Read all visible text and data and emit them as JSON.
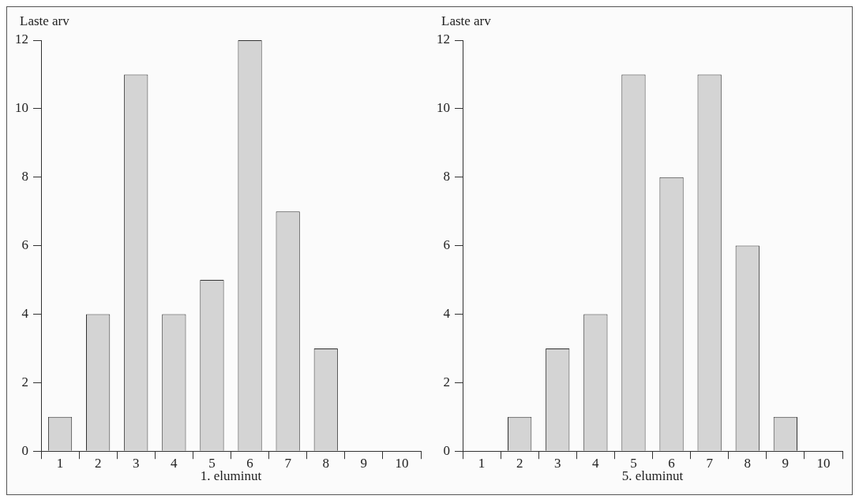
{
  "chart_data": [
    {
      "type": "bar",
      "ylabel": "Laste arv",
      "xlabel": "1. eluminut",
      "categories": [
        "1",
        "2",
        "3",
        "4",
        "5",
        "6",
        "7",
        "8",
        "9",
        "10"
      ],
      "values": [
        1,
        4,
        11,
        4,
        5,
        12,
        7,
        3,
        0,
        0
      ],
      "color": "#d4d4d4",
      "ylim": [
        0,
        12
      ],
      "yticks": [
        0,
        2,
        4,
        6,
        8,
        10,
        12
      ],
      "grid": false
    },
    {
      "type": "bar",
      "ylabel": "Laste arv",
      "xlabel": "5. eluminut",
      "categories": [
        "1",
        "2",
        "3",
        "4",
        "5",
        "6",
        "7",
        "8",
        "9",
        "10"
      ],
      "values": [
        0,
        1,
        3,
        4,
        11,
        8,
        11,
        6,
        1,
        0
      ],
      "color": "#d4d4d4",
      "ylim": [
        0,
        12
      ],
      "yticks": [
        0,
        2,
        4,
        6,
        8,
        10,
        12
      ],
      "grid": false
    }
  ]
}
